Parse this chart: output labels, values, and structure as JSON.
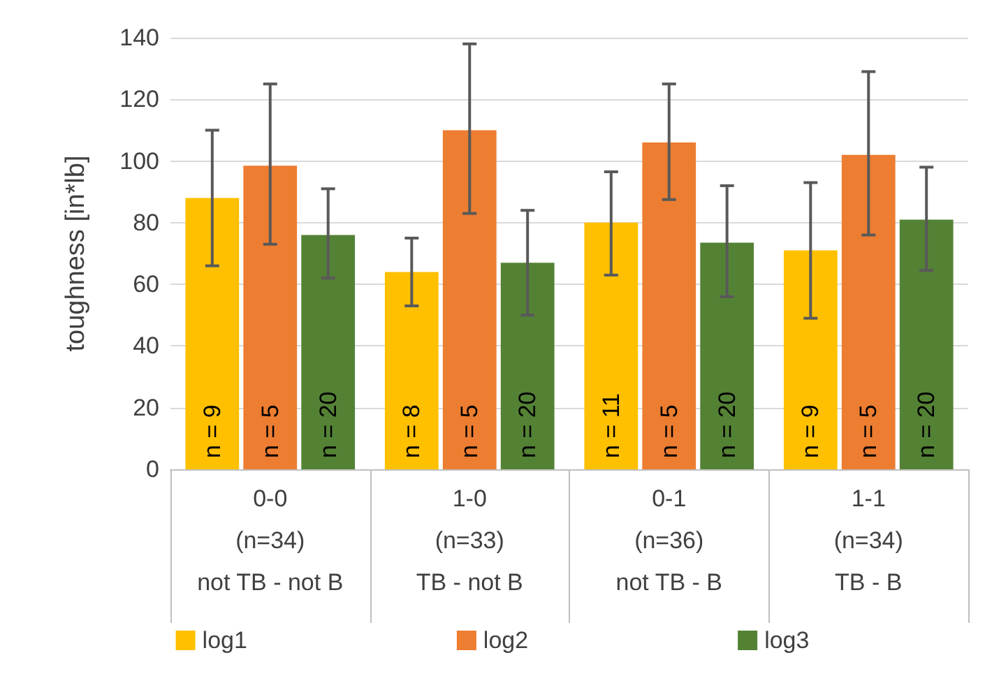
{
  "chart_data": {
    "type": "bar",
    "ylabel": "toughness [in*lb]",
    "categories": [
      "0-0\n(n=34)\nnot TB - not B",
      "1-0\n(n=33)\nTB - not B",
      "0-1\n(n=36)\nnot TB - B",
      "1-1\n(n=34)\nTB - B"
    ],
    "series": [
      {
        "name": "log1",
        "color": "#ffc000",
        "values": [
          88,
          64,
          80,
          71
        ],
        "errors": [
          [
            66,
            110
          ],
          [
            53,
            75
          ],
          [
            63,
            96.5
          ],
          [
            49,
            93
          ]
        ]
      },
      {
        "name": "log2",
        "color": "#ed7d31",
        "values": [
          98.5,
          110,
          106,
          102
        ],
        "errors": [
          [
            73,
            125
          ],
          [
            83,
            138
          ],
          [
            87.5,
            125
          ],
          [
            76,
            129
          ]
        ]
      },
      {
        "name": "log3",
        "color": "#548235",
        "values": [
          76,
          67,
          73.5,
          81
        ],
        "errors": [
          [
            62,
            91
          ],
          [
            50,
            84
          ],
          [
            56,
            92
          ],
          [
            64.5,
            98
          ]
        ]
      }
    ],
    "annotations": [
      "n = 9",
      "n = 5",
      "n = 20",
      "n = 8",
      "n = 5",
      "n = 20",
      "n = 11",
      "n = 5",
      "n = 20",
      "n = 9",
      "n = 5",
      "n = 20"
    ],
    "ylim": [
      0,
      140
    ],
    "yticks": [
      0,
      20,
      40,
      60,
      80,
      100,
      120,
      140
    ],
    "grid": "y",
    "legend": "bottom"
  }
}
